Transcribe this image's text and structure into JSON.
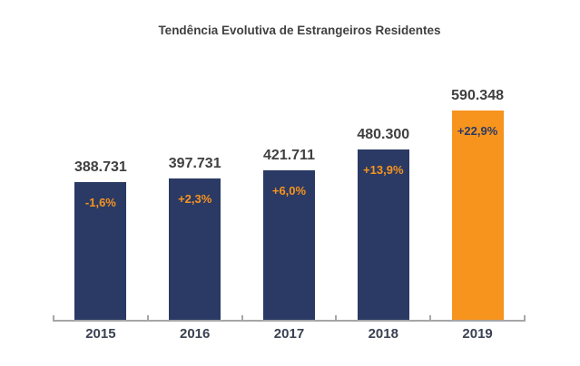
{
  "chart_data": {
    "type": "bar",
    "title": "Tendência Evolutiva de Estrangeiros Residentes",
    "categories": [
      "2015",
      "2016",
      "2017",
      "2018",
      "2019"
    ],
    "values": [
      388731,
      397731,
      421711,
      480300,
      590348
    ],
    "value_labels": [
      "388.731",
      "397.731",
      "421.711",
      "480.300",
      "590.348"
    ],
    "pct_labels": [
      "-1,6%",
      "+2,3%",
      "+6,0%",
      "+13,9%",
      "+22,9%"
    ],
    "highlight_index": 4,
    "xlabel": "",
    "ylabel": "",
    "ylim": [
      0,
      590348
    ],
    "grid": false,
    "legend": "none",
    "colors": {
      "bar": "#2B3A64",
      "highlight_bar": "#F7941E",
      "pct_on_bar": "#F7941E",
      "pct_on_highlight": "#2B3A64",
      "value_text": "#404040",
      "year_text": "#3A4152",
      "title_text": "#404040",
      "axis": "#A6A6A6"
    }
  }
}
